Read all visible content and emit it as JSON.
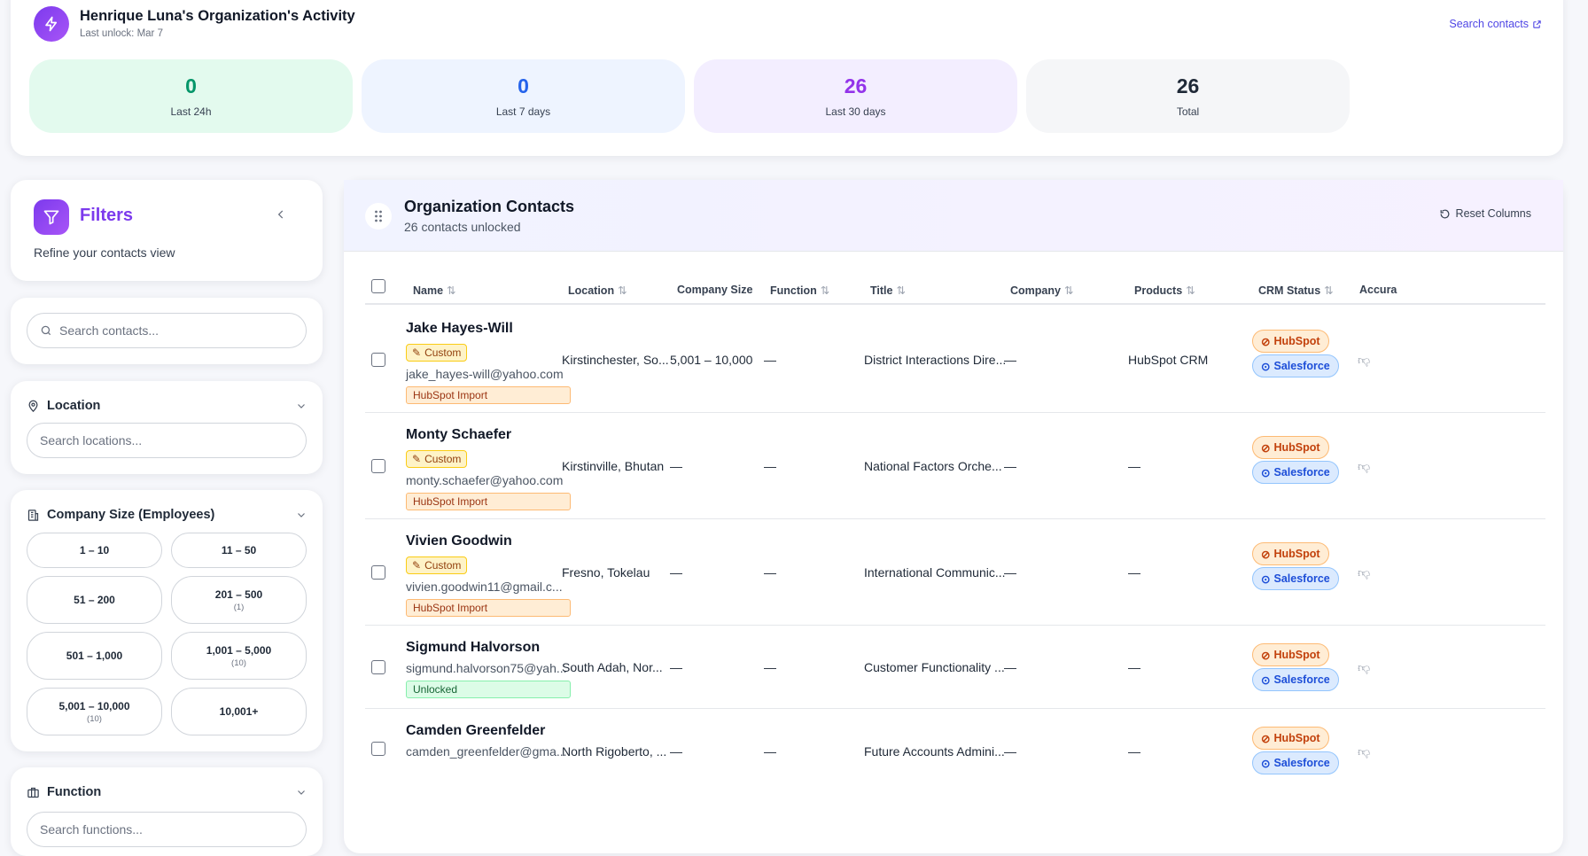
{
  "activity": {
    "title": "Henrique Luna's Organization's Activity",
    "last_unlock": "Last unlock: Mar 7",
    "search_link": "Search contacts",
    "stats": [
      {
        "value": "0",
        "label": "Last 24h",
        "color": "#059669",
        "bg": "#e3faee"
      },
      {
        "value": "0",
        "label": "Last 7 days",
        "color": "#2563eb",
        "bg": "#eef4ff"
      },
      {
        "value": "26",
        "label": "Last 30 days",
        "color": "#9333ea",
        "bg": "#f3eeff"
      },
      {
        "value": "26",
        "label": "Total",
        "color": "#1f2937",
        "bg": "#f5f6f8"
      }
    ]
  },
  "filters": {
    "title": "Filters",
    "subtitle": "Refine your contacts view",
    "search_placeholder": "Search contacts...",
    "location": {
      "label": "Location",
      "placeholder": "Search locations..."
    },
    "company_size": {
      "label": "Company Size (Employees)",
      "options": [
        {
          "label": "1 – 10",
          "count": ""
        },
        {
          "label": "11 – 50",
          "count": ""
        },
        {
          "label": "51 – 200",
          "count": ""
        },
        {
          "label": "201 – 500",
          "count": "(1)"
        },
        {
          "label": "501 – 1,000",
          "count": ""
        },
        {
          "label": "1,001 – 5,000",
          "count": "(10)"
        },
        {
          "label": "5,001 – 10,000",
          "count": "(10)"
        },
        {
          "label": "10,001+",
          "count": ""
        }
      ]
    },
    "function": {
      "label": "Function",
      "placeholder": "Search functions..."
    }
  },
  "contacts": {
    "title": "Organization Contacts",
    "subtitle": "26 contacts unlocked",
    "reset_label": "Reset Columns",
    "columns": [
      "Name",
      "Location",
      "Company Size",
      "Function",
      "Title",
      "Company",
      "Products",
      "CRM Status",
      "Accura"
    ],
    "custom_label": "Custom",
    "hubspot_label": "HubSpot",
    "salesforce_label": "Salesforce",
    "rows": [
      {
        "name": "Jake Hayes-Will",
        "custom": true,
        "email": "jake_hayes-will@yahoo.com",
        "source": "HubSpot Import",
        "location": "Kirstinchester, So...",
        "size": "5,001 – 10,000",
        "function": "—",
        "title": "District Interactions Dire...",
        "company": "—",
        "products": "HubSpot CRM"
      },
      {
        "name": "Monty Schaefer",
        "custom": true,
        "email": "monty.schaefer@yahoo.com",
        "source": "HubSpot Import",
        "location": "Kirstinville, Bhutan",
        "size": "—",
        "function": "—",
        "title": "National Factors Orche...",
        "company": "—",
        "products": "—"
      },
      {
        "name": "Vivien Goodwin",
        "custom": true,
        "email": "vivien.goodwin11@gmail.c...",
        "source": "HubSpot Import",
        "location": "Fresno, Tokelau",
        "size": "—",
        "function": "—",
        "title": "International Communic...",
        "company": "—",
        "products": "—"
      },
      {
        "name": "Sigmund Halvorson",
        "custom": false,
        "email": "sigmund.halvorson75@yah...",
        "source": "Unlocked",
        "location": "South Adah, Nor...",
        "size": "—",
        "function": "—",
        "title": "Customer Functionality ...",
        "company": "—",
        "products": "—"
      },
      {
        "name": "Camden Greenfelder",
        "custom": false,
        "email": "camden_greenfelder@gma...",
        "source": "",
        "location": "North Rigoberto, ...",
        "size": "—",
        "function": "—",
        "title": "Future Accounts Admini...",
        "company": "—",
        "products": "—"
      }
    ]
  }
}
